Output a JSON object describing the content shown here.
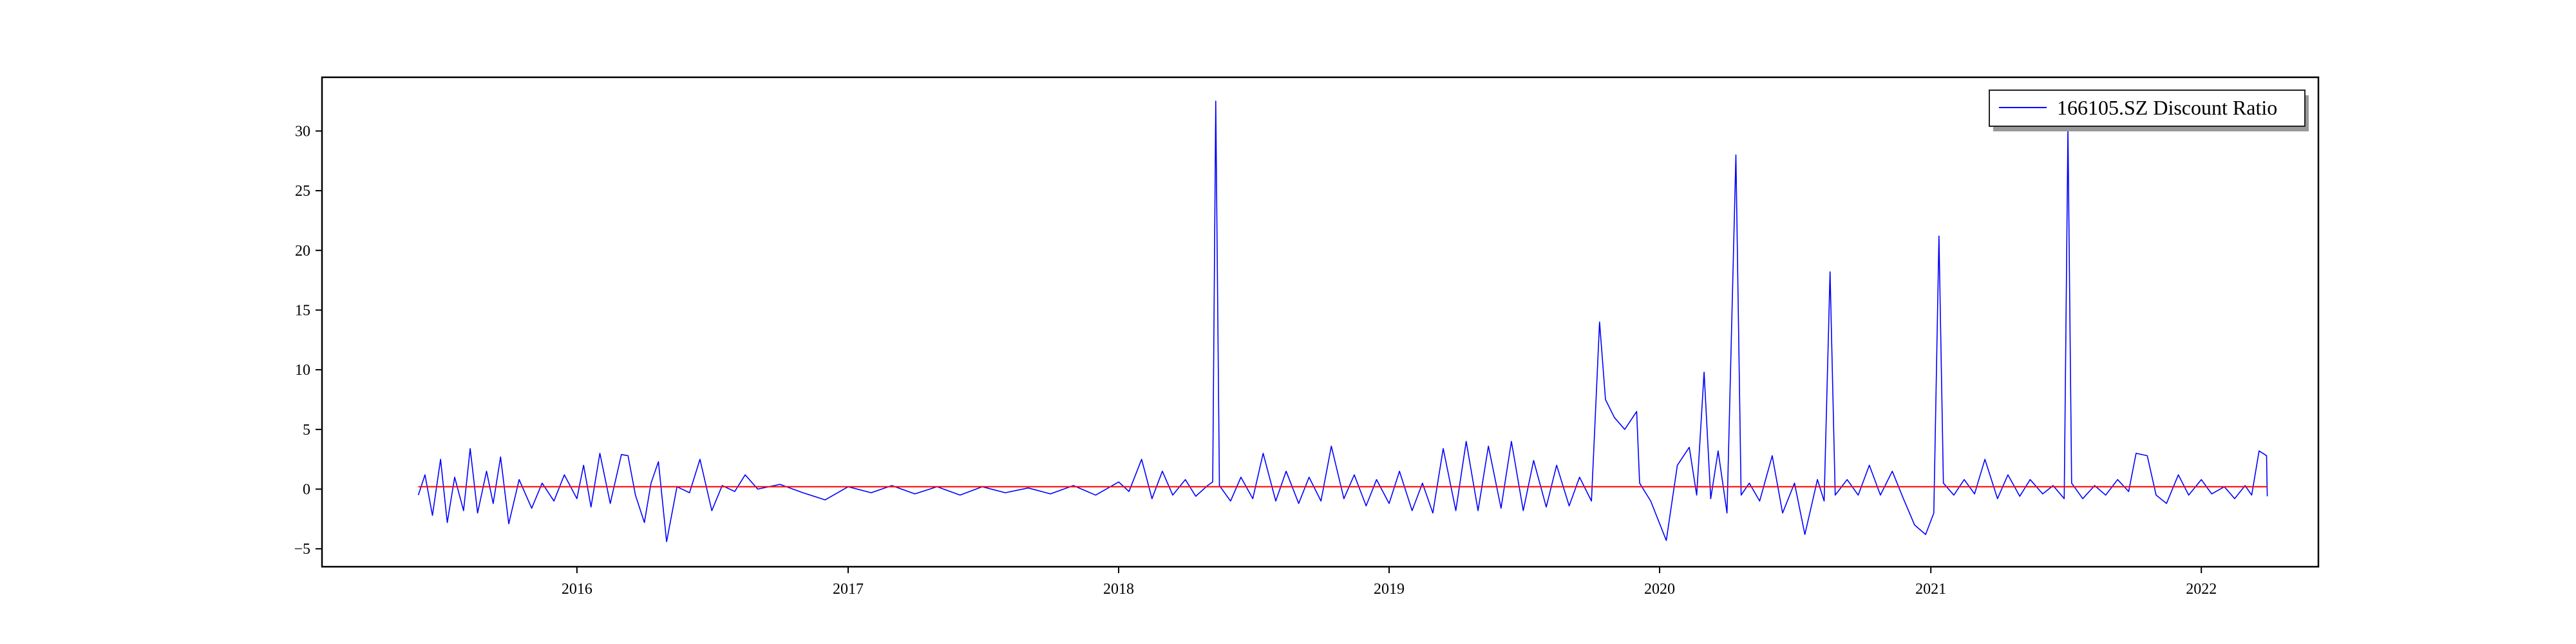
{
  "chart_data": {
    "type": "line",
    "title": "",
    "xlabel": "",
    "ylabel": "",
    "x_range": [
      "2015-01-22",
      "2022-06-08"
    ],
    "ylim": [
      -6.5,
      34.5
    ],
    "x_ticks": [
      {
        "date": "2016-01-01",
        "label": "2016"
      },
      {
        "date": "2017-01-01",
        "label": "2017"
      },
      {
        "date": "2018-01-01",
        "label": "2018"
      },
      {
        "date": "2019-01-01",
        "label": "2019"
      },
      {
        "date": "2020-01-01",
        "label": "2020"
      },
      {
        "date": "2021-01-01",
        "label": "2021"
      },
      {
        "date": "2022-01-01",
        "label": "2022"
      }
    ],
    "y_ticks": [
      {
        "value": -5,
        "label": "−5"
      },
      {
        "value": 0,
        "label": "0"
      },
      {
        "value": 5,
        "label": "5"
      },
      {
        "value": 10,
        "label": "10"
      },
      {
        "value": 15,
        "label": "15"
      },
      {
        "value": 20,
        "label": "20"
      },
      {
        "value": 25,
        "label": "25"
      },
      {
        "value": 30,
        "label": "30"
      }
    ],
    "grid": false,
    "legend_position": "top-right",
    "series": [
      {
        "name": "166105.SZ Discount Ratio",
        "color": "#0000ff",
        "points": [
          [
            "2015-06-01",
            -0.5
          ],
          [
            "2015-06-10",
            1.2
          ],
          [
            "2015-06-20",
            -2.2
          ],
          [
            "2015-07-01",
            2.5
          ],
          [
            "2015-07-10",
            -2.8
          ],
          [
            "2015-07-20",
            1.0
          ],
          [
            "2015-08-01",
            -1.8
          ],
          [
            "2015-08-10",
            3.4
          ],
          [
            "2015-08-20",
            -2.0
          ],
          [
            "2015-09-01",
            1.5
          ],
          [
            "2015-09-10",
            -1.2
          ],
          [
            "2015-09-20",
            2.7
          ],
          [
            "2015-10-01",
            -2.9
          ],
          [
            "2015-10-15",
            0.8
          ],
          [
            "2015-11-01",
            -1.6
          ],
          [
            "2015-11-15",
            0.5
          ],
          [
            "2015-12-01",
            -1.0
          ],
          [
            "2015-12-15",
            1.2
          ],
          [
            "2016-01-01",
            -0.8
          ],
          [
            "2016-01-10",
            2.0
          ],
          [
            "2016-01-20",
            -1.5
          ],
          [
            "2016-02-01",
            3.0
          ],
          [
            "2016-02-15",
            -1.2
          ],
          [
            "2016-03-01",
            2.9
          ],
          [
            "2016-03-10",
            2.8
          ],
          [
            "2016-03-20",
            -0.5
          ],
          [
            "2016-04-01",
            -2.8
          ],
          [
            "2016-04-10",
            0.5
          ],
          [
            "2016-04-20",
            2.3
          ],
          [
            "2016-05-01",
            -4.4
          ],
          [
            "2016-05-15",
            0.2
          ],
          [
            "2016-06-01",
            -0.3
          ],
          [
            "2016-06-15",
            2.5
          ],
          [
            "2016-07-01",
            -1.8
          ],
          [
            "2016-07-15",
            0.3
          ],
          [
            "2016-08-01",
            -0.2
          ],
          [
            "2016-08-15",
            1.2
          ],
          [
            "2016-09-01",
            0.0
          ],
          [
            "2016-10-01",
            0.4
          ],
          [
            "2016-11-01",
            -0.3
          ],
          [
            "2016-12-01",
            -0.9
          ],
          [
            "2017-01-01",
            0.2
          ],
          [
            "2017-02-01",
            -0.3
          ],
          [
            "2017-03-01",
            0.3
          ],
          [
            "2017-04-01",
            -0.4
          ],
          [
            "2017-05-01",
            0.2
          ],
          [
            "2017-06-01",
            -0.5
          ],
          [
            "2017-07-01",
            0.2
          ],
          [
            "2017-08-01",
            -0.3
          ],
          [
            "2017-09-01",
            0.1
          ],
          [
            "2017-10-01",
            -0.4
          ],
          [
            "2017-11-01",
            0.3
          ],
          [
            "2017-12-01",
            -0.5
          ],
          [
            "2018-01-01",
            0.6
          ],
          [
            "2018-01-15",
            -0.2
          ],
          [
            "2018-02-01",
            2.5
          ],
          [
            "2018-02-15",
            -0.8
          ],
          [
            "2018-03-01",
            1.5
          ],
          [
            "2018-03-15",
            -0.5
          ],
          [
            "2018-04-01",
            0.8
          ],
          [
            "2018-04-15",
            -0.6
          ],
          [
            "2018-05-01",
            0.3
          ],
          [
            "2018-05-08",
            0.6
          ],
          [
            "2018-05-12",
            32.5
          ],
          [
            "2018-05-17",
            0.3
          ],
          [
            "2018-06-01",
            -1.0
          ],
          [
            "2018-06-15",
            1.0
          ],
          [
            "2018-07-01",
            -0.8
          ],
          [
            "2018-07-15",
            3.0
          ],
          [
            "2018-08-01",
            -1.0
          ],
          [
            "2018-08-15",
            1.5
          ],
          [
            "2018-09-01",
            -1.2
          ],
          [
            "2018-09-15",
            1.0
          ],
          [
            "2018-10-01",
            -1.0
          ],
          [
            "2018-10-15",
            3.6
          ],
          [
            "2018-11-01",
            -0.8
          ],
          [
            "2018-11-15",
            1.2
          ],
          [
            "2018-12-01",
            -1.4
          ],
          [
            "2018-12-15",
            0.8
          ],
          [
            "2019-01-01",
            -1.2
          ],
          [
            "2019-01-15",
            1.5
          ],
          [
            "2019-02-01",
            -1.8
          ],
          [
            "2019-02-15",
            0.5
          ],
          [
            "2019-03-01",
            -2.0
          ],
          [
            "2019-03-15",
            3.4
          ],
          [
            "2019-04-01",
            -1.8
          ],
          [
            "2019-04-15",
            4.0
          ],
          [
            "2019-05-01",
            -1.8
          ],
          [
            "2019-05-15",
            3.6
          ],
          [
            "2019-06-01",
            -1.6
          ],
          [
            "2019-06-15",
            4.0
          ],
          [
            "2019-07-01",
            -1.8
          ],
          [
            "2019-07-15",
            2.4
          ],
          [
            "2019-08-01",
            -1.5
          ],
          [
            "2019-08-15",
            2.0
          ],
          [
            "2019-09-01",
            -1.4
          ],
          [
            "2019-09-15",
            1.0
          ],
          [
            "2019-10-01",
            -1.0
          ],
          [
            "2019-10-12",
            14.0
          ],
          [
            "2019-10-20",
            7.5
          ],
          [
            "2019-11-01",
            6.0
          ],
          [
            "2019-11-15",
            5.0
          ],
          [
            "2019-12-01",
            6.5
          ],
          [
            "2019-12-05",
            0.5
          ],
          [
            "2019-12-20",
            -1.0
          ],
          [
            "2020-01-10",
            -4.3
          ],
          [
            "2020-01-25",
            2.0
          ],
          [
            "2020-02-10",
            3.5
          ],
          [
            "2020-02-20",
            -0.5
          ],
          [
            "2020-03-01",
            9.8
          ],
          [
            "2020-03-10",
            -0.8
          ],
          [
            "2020-03-20",
            3.2
          ],
          [
            "2020-04-01",
            -2.0
          ],
          [
            "2020-04-13",
            28.0
          ],
          [
            "2020-04-20",
            -0.5
          ],
          [
            "2020-05-01",
            0.5
          ],
          [
            "2020-05-15",
            -1.0
          ],
          [
            "2020-06-01",
            2.8
          ],
          [
            "2020-06-15",
            -2.0
          ],
          [
            "2020-07-01",
            0.5
          ],
          [
            "2020-07-15",
            -3.8
          ],
          [
            "2020-08-01",
            0.8
          ],
          [
            "2020-08-10",
            -1.0
          ],
          [
            "2020-08-18",
            18.2
          ],
          [
            "2020-08-25",
            -0.5
          ],
          [
            "2020-09-10",
            0.8
          ],
          [
            "2020-09-25",
            -0.5
          ],
          [
            "2020-10-10",
            2.0
          ],
          [
            "2020-10-25",
            -0.5
          ],
          [
            "2020-11-10",
            1.5
          ],
          [
            "2020-11-25",
            -0.8
          ],
          [
            "2020-12-10",
            -3.0
          ],
          [
            "2020-12-25",
            -3.8
          ],
          [
            "2021-01-05",
            -2.0
          ],
          [
            "2021-01-12",
            21.2
          ],
          [
            "2021-01-18",
            0.5
          ],
          [
            "2021-02-01",
            -0.5
          ],
          [
            "2021-02-15",
            0.8
          ],
          [
            "2021-03-01",
            -0.4
          ],
          [
            "2021-03-15",
            2.5
          ],
          [
            "2021-04-01",
            -0.8
          ],
          [
            "2021-04-15",
            1.2
          ],
          [
            "2021-05-01",
            -0.6
          ],
          [
            "2021-05-15",
            0.8
          ],
          [
            "2021-06-01",
            -0.4
          ],
          [
            "2021-06-15",
            0.3
          ],
          [
            "2021-06-30",
            -0.8
          ],
          [
            "2021-07-05",
            30.2
          ],
          [
            "2021-07-10",
            0.5
          ],
          [
            "2021-07-25",
            -0.8
          ],
          [
            "2021-08-10",
            0.3
          ],
          [
            "2021-08-25",
            -0.5
          ],
          [
            "2021-09-10",
            0.8
          ],
          [
            "2021-09-25",
            -0.2
          ],
          [
            "2021-10-05",
            3.0
          ],
          [
            "2021-10-20",
            2.8
          ],
          [
            "2021-11-01",
            -0.5
          ],
          [
            "2021-11-15",
            -1.2
          ],
          [
            "2021-12-01",
            1.2
          ],
          [
            "2021-12-15",
            -0.5
          ],
          [
            "2022-01-01",
            0.8
          ],
          [
            "2022-01-15",
            -0.4
          ],
          [
            "2022-02-01",
            0.2
          ],
          [
            "2022-02-15",
            -0.8
          ],
          [
            "2022-03-01",
            0.3
          ],
          [
            "2022-03-10",
            -0.5
          ],
          [
            "2022-03-20",
            3.2
          ],
          [
            "2022-03-30",
            2.8
          ],
          [
            "2022-03-31",
            -0.6
          ]
        ]
      },
      {
        "name": "",
        "color": "#ff0000",
        "points": [
          [
            "2015-06-01",
            0.2
          ],
          [
            "2022-03-31",
            0.2
          ]
        ]
      }
    ]
  }
}
